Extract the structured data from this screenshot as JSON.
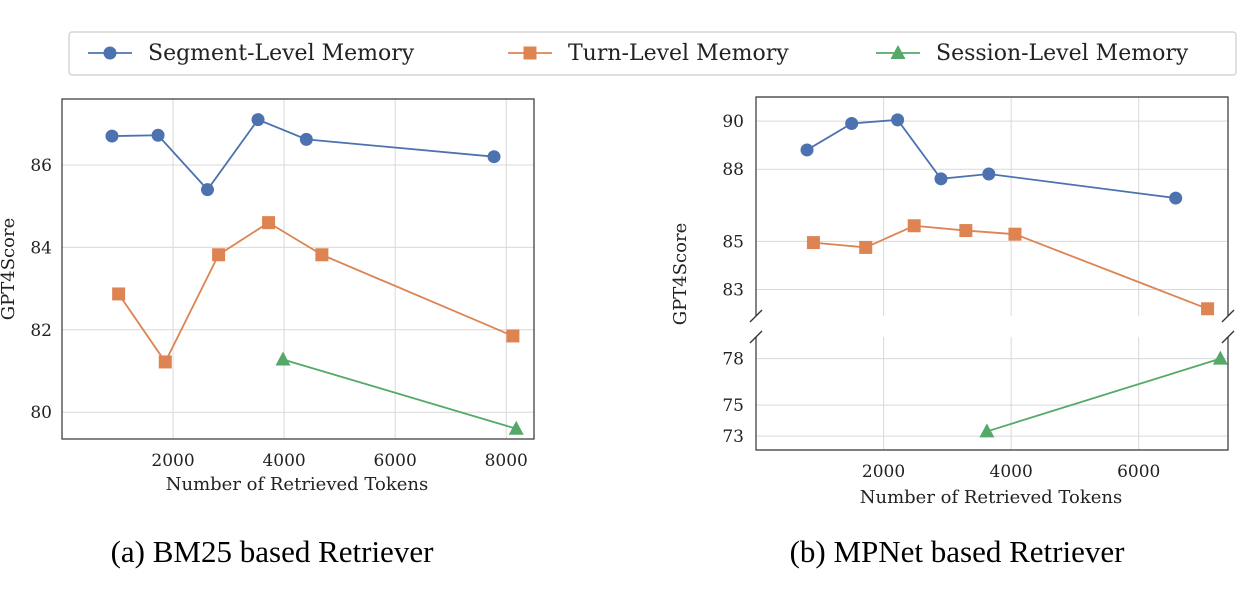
{
  "legend": {
    "entries": [
      {
        "label": "Segment-Level Memory",
        "color": "#4c72b0",
        "marker": "circle"
      },
      {
        "label": "Turn-Level Memory",
        "color": "#dd8452",
        "marker": "square"
      },
      {
        "label": "Session-Level Memory",
        "color": "#55a868",
        "marker": "triangle"
      }
    ],
    "placement": "top-center"
  },
  "chart_data": [
    {
      "type": "line",
      "caption": "(a) BM25 based Retriever",
      "xlabel": "Number of Retrieved Tokens",
      "ylabel": "GPT4Score",
      "xlim": [
        0,
        8500
      ],
      "ylim": [
        79.35,
        87.6
      ],
      "xticks": [
        2000,
        4000,
        6000,
        8000
      ],
      "yticks": [
        80,
        82,
        84,
        86
      ],
      "grid": true,
      "series": [
        {
          "name": "Segment-Level Memory",
          "marker": "circle",
          "color": "#4c72b0",
          "x": [
            900,
            1730,
            2620,
            3530,
            4400,
            7780
          ],
          "y": [
            86.7,
            86.72,
            85.4,
            87.1,
            86.62,
            86.2
          ]
        },
        {
          "name": "Turn-Level Memory",
          "marker": "square",
          "color": "#dd8452",
          "x": [
            1020,
            1860,
            2820,
            3720,
            4680,
            8120
          ],
          "y": [
            82.87,
            81.22,
            83.82,
            84.6,
            83.82,
            81.85
          ]
        },
        {
          "name": "Session-Level Memory",
          "marker": "triangle",
          "color": "#55a868",
          "x": [
            3980,
            8180
          ],
          "y": [
            81.28,
            79.6
          ]
        }
      ]
    },
    {
      "type": "line",
      "caption": "(b) MPNet based Retriever",
      "xlabel": "Number of Retrieved Tokens",
      "ylabel": "GPT4Score",
      "xlim": [
        0,
        7400
      ],
      "broken_axis": true,
      "ylim_upper": [
        81.9,
        91.0
      ],
      "ylim_lower": [
        72.1,
        79.4
      ],
      "xticks": [
        2000,
        4000,
        6000
      ],
      "yticks_upper": [
        83,
        85,
        88,
        90
      ],
      "yticks_lower": [
        73,
        75,
        78
      ],
      "grid": true,
      "series": [
        {
          "name": "Segment-Level Memory",
          "marker": "circle",
          "color": "#4c72b0",
          "x": [
            800,
            1500,
            2220,
            2900,
            3650,
            6580
          ],
          "y": [
            88.8,
            89.9,
            90.05,
            87.6,
            87.8,
            86.8
          ]
        },
        {
          "name": "Turn-Level Memory",
          "marker": "square",
          "color": "#dd8452",
          "x": [
            900,
            1720,
            2480,
            3290,
            4060,
            7080
          ],
          "y": [
            84.95,
            84.75,
            85.65,
            85.45,
            85.3,
            82.2
          ]
        },
        {
          "name": "Session-Level Memory",
          "marker": "triangle",
          "color": "#55a868",
          "x": [
            3620,
            7280
          ],
          "y": [
            73.3,
            78.0
          ]
        }
      ]
    }
  ]
}
